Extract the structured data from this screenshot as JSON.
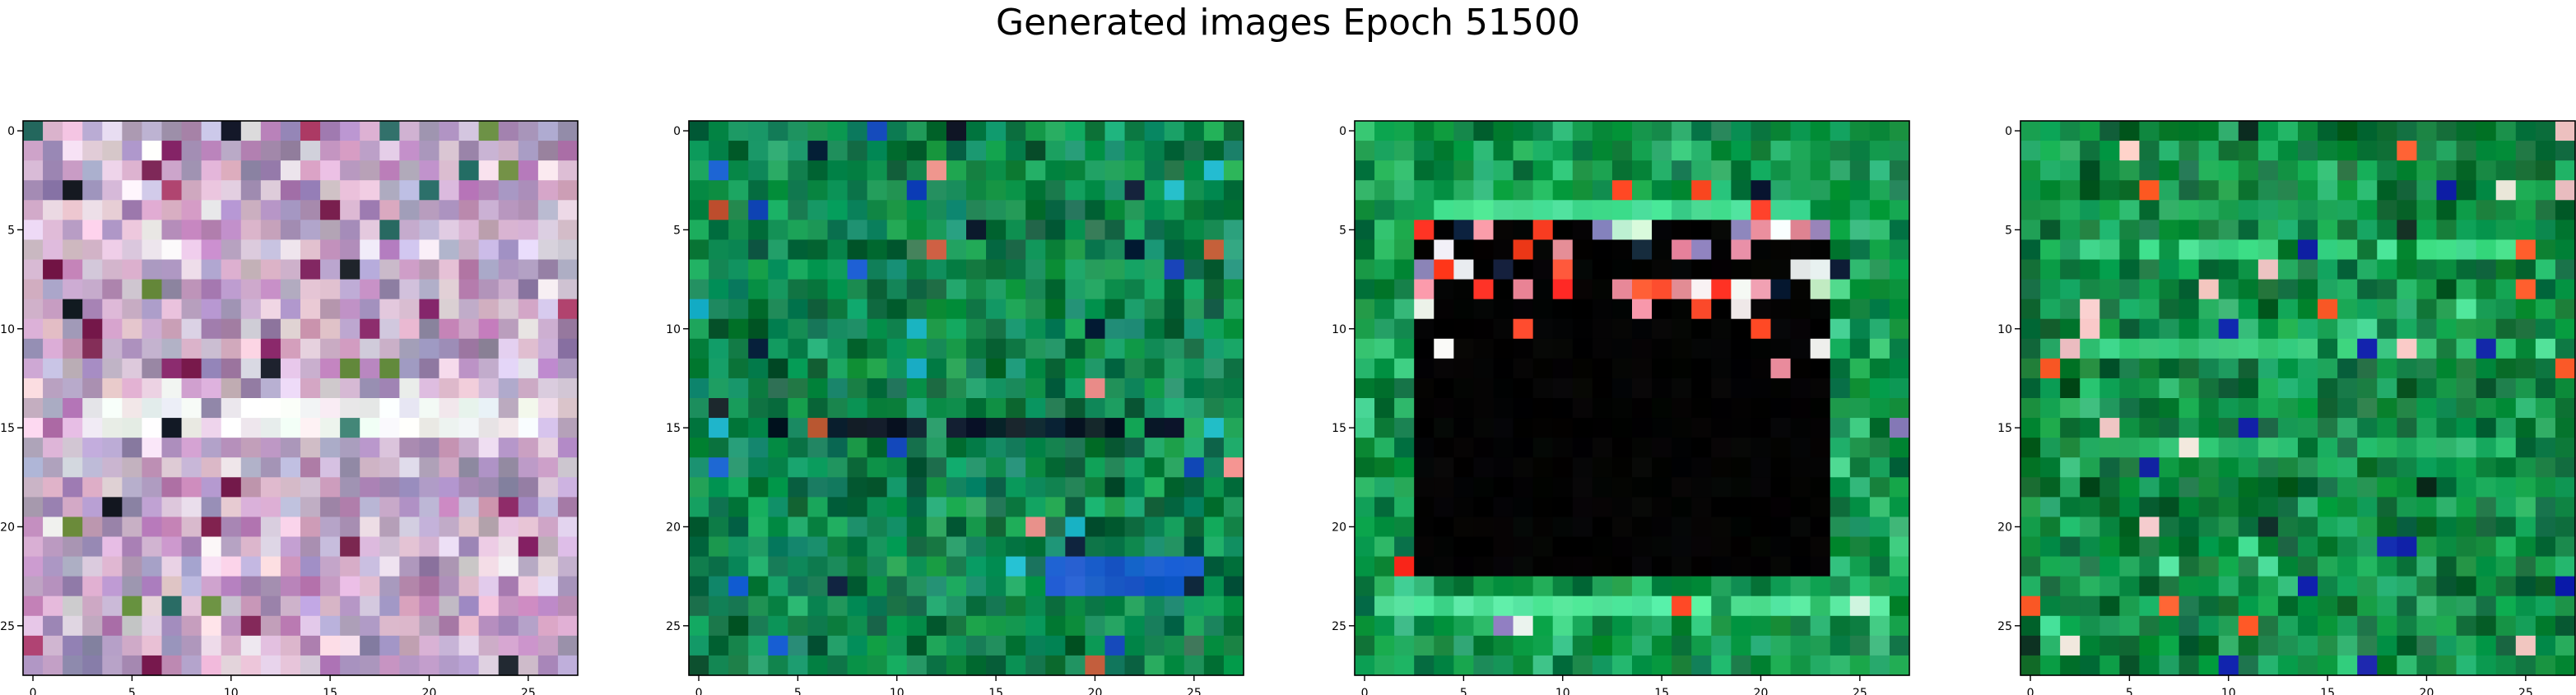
{
  "title": "Generated images Epoch 51500",
  "chart_data": [
    {
      "type": "heatmap",
      "title": "",
      "xlabel": "",
      "ylabel": "",
      "grid": 28,
      "xticks": [
        0,
        5,
        10,
        15,
        20,
        25
      ],
      "yticks": [
        0,
        5,
        10,
        15,
        20,
        25
      ],
      "xlim": [
        -0.5,
        27.5
      ],
      "ylim": [
        27.5,
        -0.5
      ],
      "palette": [
        "#d9b5d4",
        "#c9b0c6",
        "#b59bc8",
        "#e6c8d9",
        "#a48fb7",
        "#cfa3c3",
        "#bfb7d7",
        "#9b8ab0",
        "#e0d4e2",
        "#b884b9"
      ],
      "accents": [
        "#1a1f2a",
        "#3f8a7a",
        "#6b8f3f",
        "#7a1f4e",
        "#2b6f64",
        "#8c2a6c",
        "#f2f2f2",
        "#b0416f"
      ],
      "bands": [
        {
          "rows": [
            14,
            15
          ],
          "cols": [
            3,
            25
          ],
          "color": "#f4f4f4"
        }
      ]
    },
    {
      "type": "heatmap",
      "title": "",
      "xlabel": "",
      "ylabel": "",
      "grid": 28,
      "xticks": [
        0,
        5,
        10,
        15,
        20,
        25
      ],
      "yticks": [
        0,
        5,
        10,
        15,
        20,
        25
      ],
      "xlim": [
        -0.5,
        27.5
      ],
      "ylim": [
        27.5,
        -0.5
      ],
      "palette": [
        "#0f8f4a",
        "#0a7a43",
        "#138a55",
        "#0d9b5a",
        "#067038",
        "#16a064",
        "#0e6d45",
        "#1b8f6a",
        "#0b5e3a",
        "#179a4d"
      ],
      "accents": [
        "#0e3fb5",
        "#1e63d6",
        "#0b1f3a",
        "#c45a3a",
        "#ec8f8f",
        "#3a7a5a",
        "#121c2a",
        "#1fb8c9"
      ],
      "bands": [
        {
          "rows": [
            15,
            15
          ],
          "cols": [
            4,
            24
          ],
          "color": "#0f1f2c"
        },
        {
          "rows": [
            22,
            23
          ],
          "cols": [
            18,
            25
          ],
          "color": "#1d5fcf"
        }
      ]
    },
    {
      "type": "heatmap",
      "title": "",
      "xlabel": "",
      "ylabel": "",
      "grid": 28,
      "xticks": [
        0,
        5,
        10,
        15,
        20,
        25
      ],
      "yticks": [
        0,
        5,
        10,
        15,
        20,
        25
      ],
      "xlim": [
        -0.5,
        27.5
      ],
      "ylim": [
        27.5,
        -0.5
      ],
      "palette": [
        "#0c9a43",
        "#108a3f",
        "#0a7f39",
        "#1aa85a",
        "#079241",
        "#2cb86d",
        "#0d7342",
        "#14a050",
        "#38c07c",
        "#0b8d4e"
      ],
      "accents": [
        "#f2f2f2",
        "#ff4a2a",
        "#ec8fa2",
        "#13233a",
        "#8a7bb6",
        "#c7f1d3",
        "#ff2a1a"
      ],
      "dark_region": {
        "rows": [
          5,
          22
        ],
        "cols": [
          3,
          23
        ],
        "color": "#030303"
      },
      "bands": [
        {
          "rows": [
            4,
            4
          ],
          "cols": [
            4,
            22
          ],
          "color": "#3ed88c"
        },
        {
          "rows": [
            24,
            24
          ],
          "cols": [
            1,
            26
          ],
          "color": "#4fe39a"
        }
      ]
    },
    {
      "type": "heatmap",
      "title": "",
      "xlabel": "",
      "ylabel": "",
      "grid": 28,
      "xticks": [
        0,
        5,
        10,
        15,
        20,
        25
      ],
      "yticks": [
        0,
        5,
        10,
        15,
        20,
        25
      ],
      "xlim": [
        -0.5,
        27.5
      ],
      "ylim": [
        27.5,
        -0.5
      ],
      "palette": [
        "#0b8a3c",
        "#0f7a3a",
        "#138f47",
        "#0a6f35",
        "#1aa65b",
        "#0d9a48",
        "#166e3c",
        "#25b26a",
        "#0a5f32",
        "#12a04e"
      ],
      "accents": [
        "#ff5a2a",
        "#f4c8c4",
        "#1022a8",
        "#0c2a22",
        "#e8e0d8",
        "#4be09a"
      ],
      "bands": [
        {
          "rows": [
            6,
            6
          ],
          "cols": [
            3,
            24
          ],
          "color": "#3fd887"
        },
        {
          "rows": [
            11,
            11
          ],
          "cols": [
            3,
            24
          ],
          "color": "#36c97b"
        },
        {
          "rows": [
            16,
            16
          ],
          "cols": [
            3,
            24
          ],
          "color": "#2ab96a"
        }
      ]
    }
  ]
}
